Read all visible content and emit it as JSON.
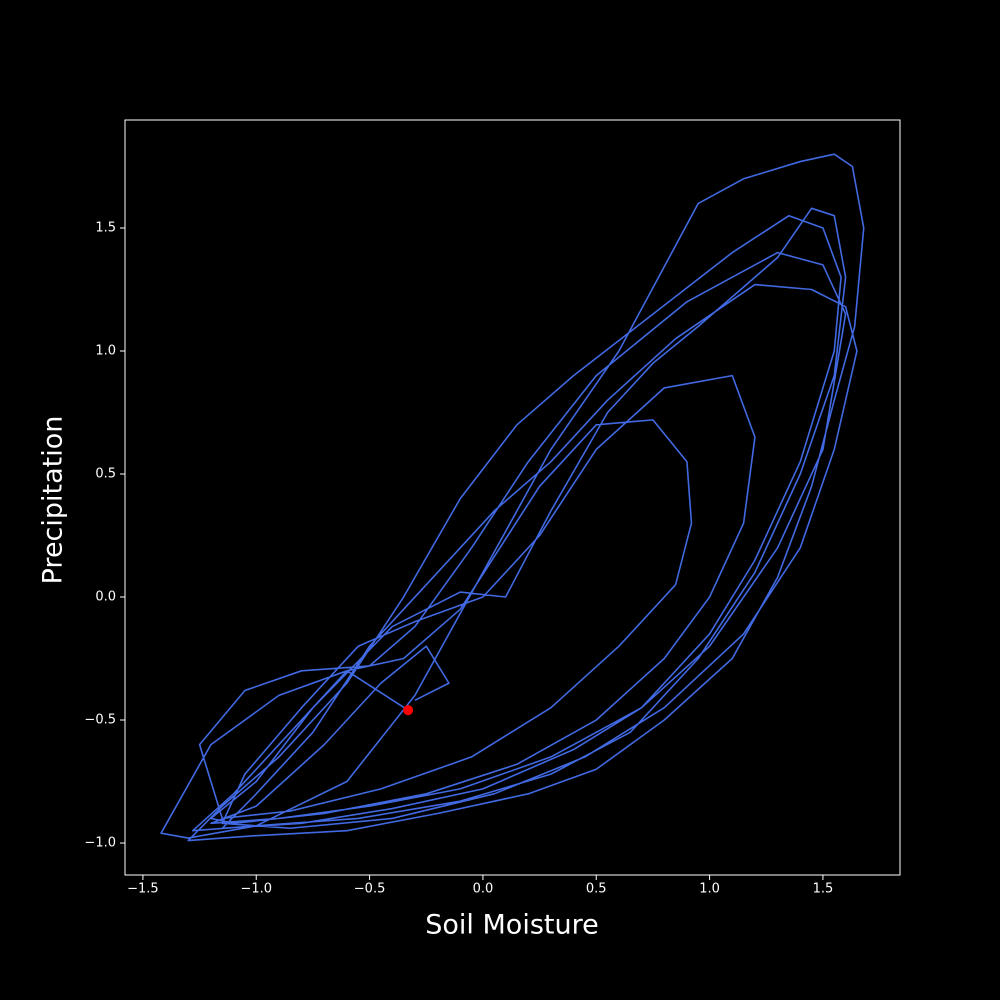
{
  "chart_data": {
    "type": "line",
    "xlabel": "Soil Moisture",
    "ylabel": "Precipitation",
    "xlim": [
      -1.579,
      1.84
    ],
    "ylim": [
      -1.13,
      1.939
    ],
    "xticks": [
      {
        "value": -1.5,
        "label": "−1.5"
      },
      {
        "value": -1.0,
        "label": "−1.0"
      },
      {
        "value": -0.5,
        "label": "−0.5"
      },
      {
        "value": 0,
        "label": "0.0"
      },
      0.5,
      {
        "value": 1.0,
        "label": "1.0"
      },
      1.5
    ],
    "yticks": [
      {
        "value": -1.0,
        "label": "−1.0"
      },
      {
        "value": -0.5,
        "label": "−0.5"
      },
      {
        "value": 0,
        "label": "0.0"
      },
      0.5,
      {
        "value": 1.0,
        "label": "1.0"
      },
      1.5
    ],
    "series": [
      {
        "kind": "line",
        "color": "#4169e1",
        "x": [
          -0.33,
          -0.6,
          -0.9,
          -1.2,
          -1.42,
          -1.3,
          -1.0,
          -0.6,
          -0.3,
          0.0,
          0.3,
          0.6,
          0.95,
          1.15,
          1.4,
          1.55,
          1.63,
          1.68,
          1.64,
          1.55,
          1.45,
          1.3,
          1.1,
          0.8,
          0.5,
          0.2,
          -0.2,
          -0.6,
          -1.0,
          -1.3,
          -1.15,
          -0.9,
          -0.6,
          -0.35,
          -0.1,
          0.15,
          0.4,
          0.75,
          1.1,
          1.35,
          1.5,
          1.58,
          1.55,
          1.4,
          1.2,
          1.0,
          0.7,
          0.4,
          0.0,
          -0.4,
          -0.8,
          -1.15,
          -1.0,
          -0.75,
          -0.5,
          -0.2,
          0.05,
          0.3,
          0.55,
          0.85,
          1.2,
          1.45,
          1.6,
          1.65,
          1.55,
          1.4,
          1.15,
          0.8,
          0.45,
          0.05,
          -0.4,
          -0.85,
          -1.15,
          -1.05,
          -0.8,
          -0.55,
          -0.3,
          0.0,
          0.25,
          0.5,
          0.8,
          1.1,
          1.2,
          1.15,
          1.0,
          0.8,
          0.5,
          0.15,
          -0.25,
          -0.7,
          -1.1,
          -1.2,
          -1.0,
          -0.75,
          -0.4,
          -0.1,
          0.1,
          0.3,
          0.55,
          0.75,
          0.95,
          1.3,
          1.45,
          1.55,
          1.6,
          1.55,
          1.4,
          1.2,
          0.95,
          0.65,
          0.3,
          -0.1,
          -0.55,
          -1.0,
          -1.28,
          -1.1,
          -0.85,
          -0.6,
          -0.35,
          -0.1,
          0.25,
          0.5,
          0.75,
          0.9,
          0.92,
          0.85,
          0.6,
          0.3,
          -0.05,
          -0.45,
          -0.85,
          -1.15,
          -1.25,
          -1.05,
          -0.8,
          -0.5,
          -0.3,
          -0.05,
          0.2,
          0.5,
          0.9,
          1.3,
          1.5,
          1.6,
          1.5,
          1.3,
          1.0,
          0.7,
          0.3,
          -0.1,
          -0.5,
          -0.9,
          -1.2,
          -1.0,
          -0.7,
          -0.45,
          -0.25,
          -0.15,
          -0.3
        ],
        "values": [
          -0.46,
          -0.3,
          -0.4,
          -0.6,
          -0.96,
          -0.98,
          -0.93,
          -0.75,
          -0.4,
          0.1,
          0.6,
          1.0,
          1.6,
          1.7,
          1.77,
          1.8,
          1.75,
          1.5,
          1.1,
          0.8,
          0.45,
          0.08,
          -0.25,
          -0.5,
          -0.7,
          -0.8,
          -0.88,
          -0.95,
          -0.97,
          -0.99,
          -0.85,
          -0.65,
          -0.35,
          0.0,
          0.4,
          0.7,
          0.9,
          1.15,
          1.4,
          1.55,
          1.5,
          1.3,
          1.0,
          0.55,
          0.15,
          -0.15,
          -0.45,
          -0.62,
          -0.78,
          -0.86,
          -0.92,
          -0.94,
          -0.8,
          -0.55,
          -0.2,
          0.1,
          0.35,
          0.55,
          0.8,
          1.05,
          1.27,
          1.25,
          1.18,
          1.0,
          0.6,
          0.2,
          -0.15,
          -0.45,
          -0.65,
          -0.8,
          -0.9,
          -0.94,
          -0.92,
          -0.72,
          -0.45,
          -0.2,
          -0.1,
          0.0,
          0.25,
          0.6,
          0.85,
          0.9,
          0.65,
          0.3,
          0.0,
          -0.25,
          -0.5,
          -0.68,
          -0.8,
          -0.88,
          -0.92,
          -0.9,
          -0.75,
          -0.45,
          -0.12,
          0.02,
          0.0,
          0.35,
          0.75,
          0.95,
          1.1,
          1.38,
          1.58,
          1.55,
          1.3,
          0.9,
          0.5,
          0.1,
          -0.25,
          -0.55,
          -0.72,
          -0.83,
          -0.9,
          -0.93,
          -0.95,
          -0.8,
          -0.55,
          -0.3,
          -0.25,
          -0.05,
          0.45,
          0.7,
          0.72,
          0.55,
          0.3,
          0.05,
          -0.2,
          -0.45,
          -0.65,
          -0.78,
          -0.87,
          -0.9,
          -0.6,
          -0.38,
          -0.3,
          -0.28,
          -0.12,
          0.2,
          0.55,
          0.9,
          1.2,
          1.4,
          1.35,
          1.15,
          0.6,
          0.2,
          -0.2,
          -0.45,
          -0.65,
          -0.78,
          -0.85,
          -0.9,
          -0.92,
          -0.85,
          -0.6,
          -0.35,
          -0.2,
          -0.35,
          -0.42
        ]
      },
      {
        "kind": "scatter",
        "color": "#ff0000",
        "x": [
          -0.33
        ],
        "values": [
          -0.46
        ]
      }
    ]
  }
}
